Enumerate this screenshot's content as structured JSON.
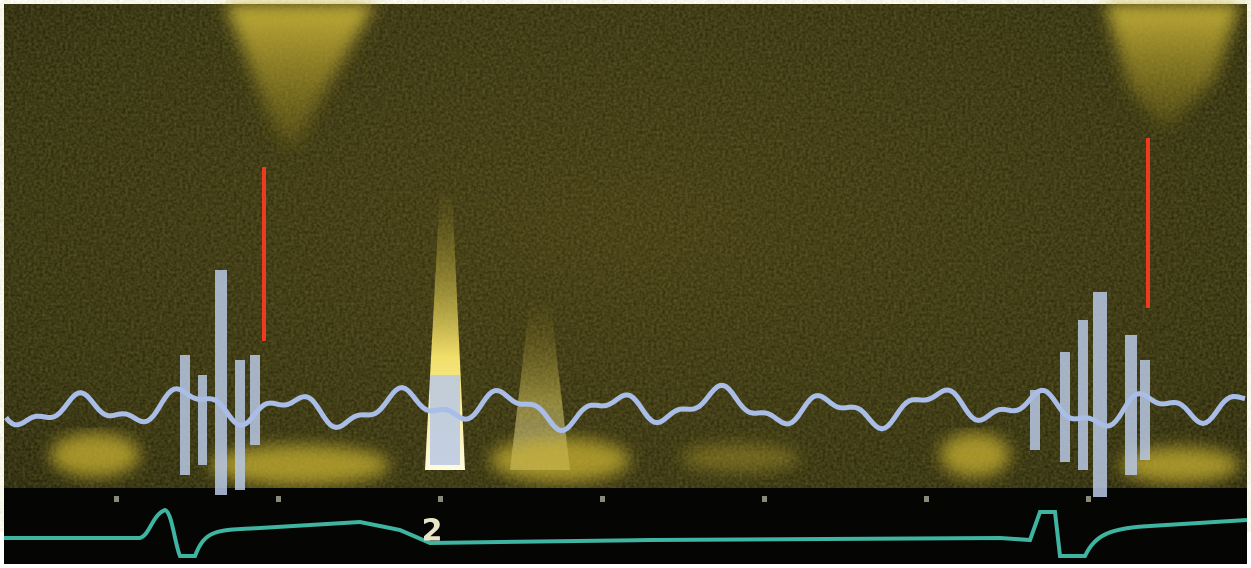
{
  "image": {
    "marker_label": "2"
  }
}
